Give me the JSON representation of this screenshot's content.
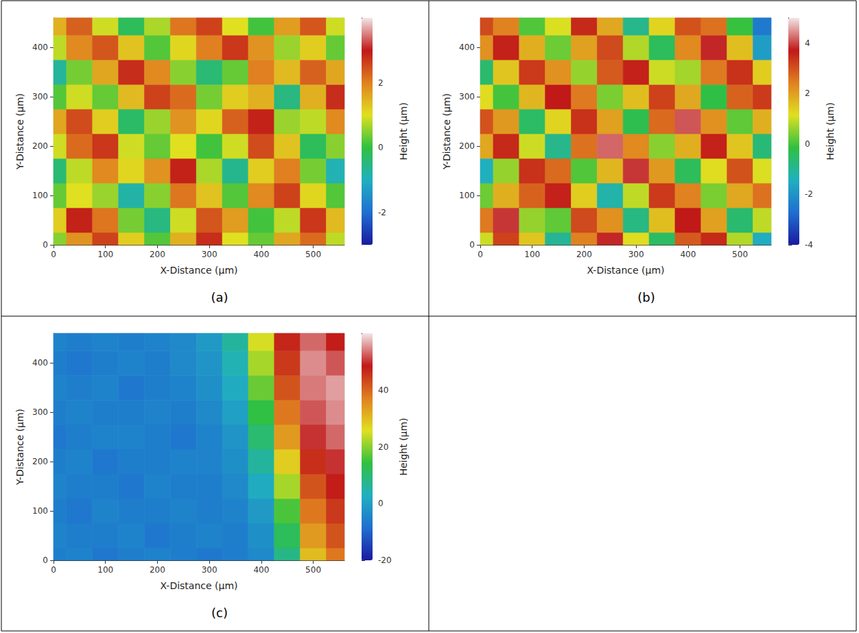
{
  "chart_data": [
    {
      "type": "heatmap",
      "title": "(a)",
      "xlabel": "X-Distance (μm)",
      "ylabel": "Y-Distance (μm)",
      "zlabel": "Height (μm)",
      "x": [
        0,
        50,
        100,
        150,
        200,
        250,
        300,
        350,
        400,
        450,
        500,
        550
      ],
      "y": [
        0,
        50,
        100,
        150,
        200,
        250,
        300,
        350,
        400,
        450
      ],
      "z": [
        [
          0.5,
          1.8,
          2.6,
          1.2,
          0.2,
          1.5,
          2.8,
          1.0,
          0.3,
          1.6,
          2.2,
          0.8
        ],
        [
          1.2,
          2.9,
          2.1,
          0.4,
          -0.5,
          0.9,
          2.4,
          1.7,
          0.1,
          0.8,
          2.7,
          1.4
        ],
        [
          0.3,
          1.0,
          0.6,
          -0.8,
          0.5,
          2.1,
          1.3,
          0.2,
          1.9,
          2.6,
          1.1,
          0.2
        ],
        [
          -0.4,
          0.8,
          1.9,
          1.1,
          1.8,
          2.9,
          0.7,
          -0.6,
          1.2,
          2.0,
          0.4,
          -0.9
        ],
        [
          0.9,
          2.2,
          2.7,
          0.9,
          0.3,
          1.0,
          0.1,
          0.9,
          2.5,
          1.3,
          -0.2,
          0.5
        ],
        [
          1.6,
          2.5,
          1.2,
          -0.3,
          0.6,
          1.8,
          1.1,
          2.3,
          2.9,
          0.6,
          0.8,
          1.9
        ],
        [
          0.2,
          0.9,
          0.3,
          1.4,
          2.6,
          2.2,
          0.4,
          1.2,
          1.5,
          -0.5,
          1.5,
          2.8
        ],
        [
          -0.7,
          0.4,
          1.6,
          2.8,
          1.9,
          0.5,
          -0.4,
          0.3,
          2.0,
          1.4,
          2.3,
          1.6
        ],
        [
          0.8,
          1.9,
          2.4,
          1.3,
          0.2,
          1.1,
          2.0,
          2.7,
          1.8,
          0.6,
          1.2,
          0.3
        ],
        [
          1.5,
          2.3,
          0.9,
          -0.2,
          0.7,
          2.1,
          2.6,
          1.0,
          0.1,
          1.7,
          2.4,
          0.9
        ]
      ],
      "xlim": [
        0,
        560
      ],
      "xticks": [
        0,
        100,
        200,
        300,
        400,
        500
      ],
      "ylim": [
        0,
        460
      ],
      "yticks": [
        0,
        100,
        200,
        300,
        400
      ],
      "zlim": [
        -3,
        4
      ],
      "zticks": [
        -2,
        0,
        2
      ]
    },
    {
      "type": "heatmap",
      "title": "(b)",
      "xlabel": "X-Distance (μm)",
      "ylabel": "Y-Distance (μm)",
      "zlabel": "Height (μm)",
      "x": [
        0,
        50,
        100,
        150,
        200,
        250,
        300,
        350,
        400,
        450,
        500,
        550
      ],
      "y": [
        0,
        50,
        100,
        150,
        200,
        250,
        300,
        350,
        400,
        450
      ],
      "z": [
        [
          1.0,
          3.2,
          1.5,
          -1.0,
          2.4,
          3.8,
          1.2,
          -0.5,
          2.9,
          3.5,
          0.8,
          -1.5
        ],
        [
          2.5,
          3.9,
          0.6,
          0.2,
          3.1,
          2.2,
          -0.8,
          1.6,
          3.7,
          2.0,
          -0.6,
          0.9
        ],
        [
          0.3,
          1.8,
          2.8,
          3.6,
          1.4,
          -1.2,
          0.9,
          3.3,
          2.4,
          0.4,
          1.9,
          2.6
        ],
        [
          -1.4,
          0.6,
          3.4,
          2.7,
          0.1,
          1.7,
          3.9,
          2.1,
          -0.4,
          1.2,
          3.0,
          1.1
        ],
        [
          1.9,
          3.5,
          1.0,
          -0.9,
          2.6,
          4.2,
          2.3,
          0.5,
          1.8,
          3.6,
          1.5,
          -0.7
        ],
        [
          3.0,
          2.1,
          -0.5,
          1.3,
          3.4,
          2.0,
          -0.3,
          2.7,
          4.1,
          2.2,
          0.2,
          1.8
        ],
        [
          1.2,
          0.0,
          1.7,
          3.7,
          2.5,
          0.4,
          1.6,
          3.2,
          1.9,
          -0.2,
          2.8,
          3.3
        ],
        [
          -0.6,
          1.5,
          3.3,
          2.2,
          0.6,
          2.9,
          3.6,
          1.0,
          0.7,
          2.5,
          3.4,
          1.4
        ],
        [
          2.2,
          3.6,
          1.8,
          0.3,
          2.0,
          3.1,
          0.8,
          -0.4,
          2.3,
          3.8,
          1.6,
          -1.8
        ],
        [
          3.1,
          2.4,
          0.1,
          1.1,
          3.5,
          1.9,
          -0.9,
          1.3,
          3.0,
          2.6,
          -0.1,
          -2.5
        ]
      ],
      "xlim": [
        0,
        560
      ],
      "xticks": [
        0,
        100,
        200,
        300,
        400,
        500
      ],
      "ylim": [
        0,
        460
      ],
      "yticks": [
        0,
        100,
        200,
        300,
        400
      ],
      "zlim": [
        -4,
        5
      ],
      "zticks": [
        -4,
        -2,
        0,
        2,
        4
      ]
    },
    {
      "type": "heatmap",
      "title": "(c)",
      "xlabel": "X-Distance (μm)",
      "ylabel": "Y-Distance (μm)",
      "zlabel": "Height (μm)",
      "x": [
        0,
        50,
        100,
        150,
        200,
        250,
        300,
        350,
        400,
        450,
        500,
        550
      ],
      "y": [
        0,
        50,
        100,
        150,
        200,
        250,
        300,
        350,
        400,
        450
      ],
      "z": [
        [
          -6,
          -5,
          -7,
          -6,
          -5,
          -6,
          -7,
          -6,
          -4,
          8,
          30,
          38
        ],
        [
          -5,
          -6,
          -6,
          -5,
          -7,
          -6,
          -5,
          -6,
          -3,
          12,
          34,
          42
        ],
        [
          -6,
          -7,
          -5,
          -6,
          -6,
          -5,
          -6,
          -5,
          -1,
          16,
          38,
          45
        ],
        [
          -5,
          -6,
          -6,
          -7,
          -5,
          -6,
          -6,
          -4,
          2,
          22,
          42,
          48
        ],
        [
          -6,
          -5,
          -7,
          -6,
          -6,
          -5,
          -5,
          -3,
          6,
          28,
          46,
          50
        ],
        [
          -7,
          -6,
          -5,
          -5,
          -6,
          -7,
          -5,
          -2,
          10,
          34,
          50,
          53
        ],
        [
          -6,
          -5,
          -6,
          -6,
          -5,
          -6,
          -4,
          0,
          14,
          38,
          52,
          55
        ],
        [
          -5,
          -6,
          -5,
          -7,
          -6,
          -5,
          -3,
          2,
          18,
          42,
          54,
          56
        ],
        [
          -6,
          -7,
          -6,
          -5,
          -6,
          -4,
          -2,
          4,
          22,
          45,
          55,
          52
        ],
        [
          -5,
          -6,
          -5,
          -6,
          -5,
          -4,
          -1,
          6,
          25,
          47,
          53,
          48
        ]
      ],
      "xlim": [
        0,
        560
      ],
      "xticks": [
        0,
        100,
        200,
        300,
        400,
        500
      ],
      "ylim": [
        0,
        460
      ],
      "yticks": [
        0,
        100,
        200,
        300,
        400
      ],
      "zlim": [
        -20,
        60
      ],
      "zticks": [
        -20,
        0,
        20,
        40
      ]
    }
  ]
}
